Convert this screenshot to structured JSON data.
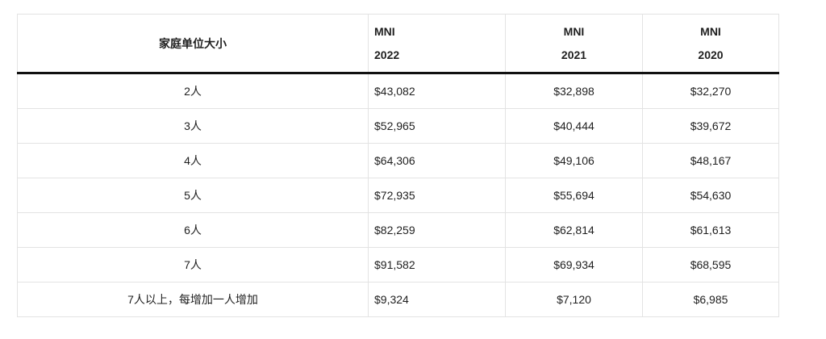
{
  "header": {
    "household_size": "家庭单位大小",
    "columns": [
      {
        "label": "MNI",
        "year": "2022"
      },
      {
        "label": "MNI",
        "year": "2021"
      },
      {
        "label": "MNI",
        "year": "2020"
      }
    ]
  },
  "rows": [
    {
      "size": "2人",
      "y2022": "$43,082",
      "y2021": "$32,898",
      "y2020": "$32,270"
    },
    {
      "size": "3人",
      "y2022": "$52,965",
      "y2021": "$40,444",
      "y2020": "$39,672"
    },
    {
      "size": "4人",
      "y2022": "$64,306",
      "y2021": "$49,106",
      "y2020": "$48,167"
    },
    {
      "size": "5人",
      "y2022": "$72,935",
      "y2021": "$55,694",
      "y2020": "$54,630"
    },
    {
      "size": "6人",
      "y2022": "$82,259",
      "y2021": "$62,814",
      "y2020": "$61,613"
    },
    {
      "size": "7人",
      "y2022": "$91,582",
      "y2021": "$69,934",
      "y2020": "$68,595"
    },
    {
      "size": "7人以上，每增加一人增加",
      "y2022": "$9,324",
      "y2021": "$7,120",
      "y2020": "$6,985"
    }
  ]
}
